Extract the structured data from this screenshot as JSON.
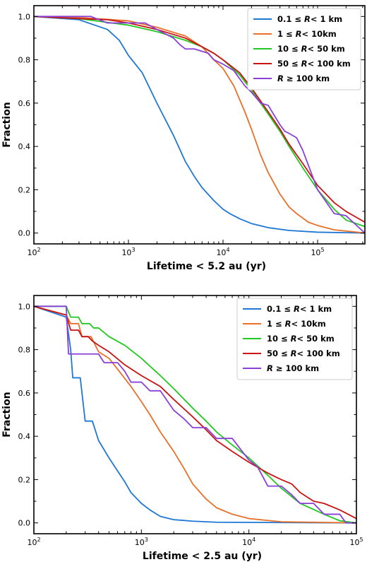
{
  "chart_data": [
    {
      "type": "line",
      "xlabel": "Lifetime < 5.2 au (yr)",
      "ylabel": "Fraction",
      "xscale": "log",
      "xlim": [
        100,
        316228
      ],
      "ylim": [
        -0.05,
        1.05
      ],
      "xticks": [
        {
          "value": 100,
          "base": "10",
          "exp": "2"
        },
        {
          "value": 1000,
          "base": "10",
          "exp": "3"
        },
        {
          "value": 10000,
          "base": "10",
          "exp": "4"
        },
        {
          "value": 100000,
          "base": "10",
          "exp": "5"
        }
      ],
      "yticks": [
        "0.0",
        "0.2",
        "0.4",
        "0.6",
        "0.8",
        "1.0"
      ],
      "legend_position": "top-right",
      "series": [
        {
          "name_parts": [
            "0.1 ",
            "≤",
            "R",
            "< 1 km"
          ],
          "color": "#1f77d4",
          "points": [
            [
              100,
              1.0
            ],
            [
              300,
              0.985
            ],
            [
              600,
              0.94
            ],
            [
              800,
              0.89
            ],
            [
              1000,
              0.82
            ],
            [
              1400,
              0.74
            ],
            [
              2000,
              0.6
            ],
            [
              3000,
              0.45
            ],
            [
              4000,
              0.33
            ],
            [
              5000,
              0.26
            ],
            [
              6000,
              0.21
            ],
            [
              8000,
              0.15
            ],
            [
              10000,
              0.11
            ],
            [
              12000,
              0.088
            ],
            [
              15000,
              0.066
            ],
            [
              20000,
              0.044
            ],
            [
              30000,
              0.025
            ],
            [
              50000,
              0.012
            ],
            [
              100000,
              0.004
            ],
            [
              316228,
              0.0
            ]
          ]
        },
        {
          "name_parts": [
            "1",
            "≤",
            "R",
            "< 10km"
          ],
          "color": "#e8702a",
          "points": [
            [
              100,
              1.0
            ],
            [
              300,
              0.995
            ],
            [
              1000,
              0.98
            ],
            [
              2000,
              0.95
            ],
            [
              4000,
              0.91
            ],
            [
              6000,
              0.86
            ],
            [
              8000,
              0.8
            ],
            [
              10000,
              0.76
            ],
            [
              13000,
              0.68
            ],
            [
              17000,
              0.56
            ],
            [
              20000,
              0.48
            ],
            [
              25000,
              0.36
            ],
            [
              30000,
              0.28
            ],
            [
              40000,
              0.18
            ],
            [
              50000,
              0.12
            ],
            [
              60000,
              0.09
            ],
            [
              80000,
              0.05
            ],
            [
              100000,
              0.035
            ],
            [
              150000,
              0.015
            ],
            [
              316228,
              0.0
            ]
          ]
        },
        {
          "name_parts": [
            "10",
            "≤",
            "R",
            "< 50 km"
          ],
          "color": "#22c822",
          "points": [
            [
              100,
              1.0
            ],
            [
              300,
              0.99
            ],
            [
              1000,
              0.96
            ],
            [
              2000,
              0.93
            ],
            [
              4000,
              0.89
            ],
            [
              6000,
              0.86
            ],
            [
              8000,
              0.83
            ],
            [
              10000,
              0.8
            ],
            [
              15000,
              0.73
            ],
            [
              20000,
              0.66
            ],
            [
              30000,
              0.55
            ],
            [
              40000,
              0.47
            ],
            [
              50000,
              0.4
            ],
            [
              70000,
              0.3
            ],
            [
              100000,
              0.2
            ],
            [
              150000,
              0.11
            ],
            [
              200000,
              0.06
            ],
            [
              316228,
              0.03
            ]
          ]
        },
        {
          "name_parts": [
            "50",
            "≤",
            "R",
            "< 100 km"
          ],
          "color": "#c81414",
          "points": [
            [
              100,
              1.0
            ],
            [
              300,
              0.99
            ],
            [
              600,
              0.985
            ],
            [
              1000,
              0.97
            ],
            [
              2000,
              0.94
            ],
            [
              4000,
              0.9
            ],
            [
              6000,
              0.86
            ],
            [
              8000,
              0.83
            ],
            [
              10000,
              0.8
            ],
            [
              15000,
              0.74
            ],
            [
              20000,
              0.67
            ],
            [
              30000,
              0.56
            ],
            [
              40000,
              0.48
            ],
            [
              50000,
              0.41
            ],
            [
              70000,
              0.32
            ],
            [
              100000,
              0.22
            ],
            [
              150000,
              0.14
            ],
            [
              200000,
              0.1
            ],
            [
              316228,
              0.05
            ]
          ]
        },
        {
          "name_parts": [
            "",
            "",
            "R",
            " ≥ 100 km"
          ],
          "color": "#8a3fd8",
          "points": [
            [
              100,
              1.0
            ],
            [
              400,
              1.0
            ],
            [
              600,
              0.97
            ],
            [
              800,
              0.97
            ],
            [
              1000,
              0.97
            ],
            [
              1500,
              0.97
            ],
            [
              2000,
              0.94
            ],
            [
              3000,
              0.9
            ],
            [
              3500,
              0.87
            ],
            [
              4000,
              0.85
            ],
            [
              5000,
              0.85
            ],
            [
              7000,
              0.83
            ],
            [
              8000,
              0.8
            ],
            [
              10000,
              0.78
            ],
            [
              13000,
              0.75
            ],
            [
              17000,
              0.68
            ],
            [
              20000,
              0.65
            ],
            [
              25000,
              0.6
            ],
            [
              30000,
              0.59
            ],
            [
              40000,
              0.5
            ],
            [
              45000,
              0.47
            ],
            [
              50000,
              0.46
            ],
            [
              60000,
              0.44
            ],
            [
              70000,
              0.38
            ],
            [
              100000,
              0.2
            ],
            [
              150000,
              0.09
            ],
            [
              200000,
              0.08
            ],
            [
              316228,
              0.0
            ]
          ]
        }
      ]
    },
    {
      "type": "line",
      "xlabel": "Lifetime < 2.5 au (yr)",
      "ylabel": "Fraction",
      "xscale": "log",
      "xlim": [
        100,
        100000
      ],
      "ylim": [
        -0.05,
        1.05
      ],
      "xticks": [
        {
          "value": 100,
          "base": "10",
          "exp": "2"
        },
        {
          "value": 1000,
          "base": "10",
          "exp": "3"
        },
        {
          "value": 10000,
          "base": "10",
          "exp": "4"
        },
        {
          "value": 100000,
          "base": "10",
          "exp": "5"
        }
      ],
      "yticks": [
        "0.0",
        "0.2",
        "0.4",
        "0.6",
        "0.8",
        "1.0"
      ],
      "legend_position": "top-right",
      "series": [
        {
          "name_parts": [
            "0.1 ",
            "≤",
            "R",
            "< 1 km"
          ],
          "color": "#1f77d4",
          "points": [
            [
              100,
              1.0
            ],
            [
              200,
              0.95
            ],
            [
              220,
              0.8
            ],
            [
              230,
              0.67
            ],
            [
              270,
              0.67
            ],
            [
              300,
              0.47
            ],
            [
              350,
              0.47
            ],
            [
              400,
              0.38
            ],
            [
              500,
              0.3
            ],
            [
              600,
              0.24
            ],
            [
              700,
              0.19
            ],
            [
              800,
              0.14
            ],
            [
              1000,
              0.09
            ],
            [
              1200,
              0.06
            ],
            [
              1500,
              0.03
            ],
            [
              2000,
              0.015
            ],
            [
              3000,
              0.008
            ],
            [
              5000,
              0.003
            ],
            [
              100000,
              0.0
            ]
          ]
        },
        {
          "name_parts": [
            "1",
            "≤",
            "R",
            "< 10km"
          ],
          "color": "#e8702a",
          "points": [
            [
              100,
              1.0
            ],
            [
              200,
              0.96
            ],
            [
              220,
              0.92
            ],
            [
              260,
              0.92
            ],
            [
              280,
              0.86
            ],
            [
              340,
              0.86
            ],
            [
              400,
              0.79
            ],
            [
              500,
              0.76
            ],
            [
              600,
              0.71
            ],
            [
              800,
              0.63
            ],
            [
              1000,
              0.56
            ],
            [
              1200,
              0.5
            ],
            [
              1500,
              0.42
            ],
            [
              2000,
              0.33
            ],
            [
              2500,
              0.25
            ],
            [
              3000,
              0.18
            ],
            [
              4000,
              0.11
            ],
            [
              5000,
              0.07
            ],
            [
              7000,
              0.04
            ],
            [
              10000,
              0.02
            ],
            [
              20000,
              0.005
            ],
            [
              100000,
              0.0
            ]
          ]
        },
        {
          "name_parts": [
            "10",
            "≤",
            "R",
            "< 50 km"
          ],
          "color": "#22c822",
          "points": [
            [
              100,
              1.0
            ],
            [
              200,
              1.0
            ],
            [
              220,
              0.95
            ],
            [
              260,
              0.95
            ],
            [
              280,
              0.92
            ],
            [
              330,
              0.92
            ],
            [
              360,
              0.9
            ],
            [
              400,
              0.9
            ],
            [
              500,
              0.86
            ],
            [
              700,
              0.82
            ],
            [
              1000,
              0.76
            ],
            [
              1500,
              0.68
            ],
            [
              2000,
              0.62
            ],
            [
              3000,
              0.53
            ],
            [
              4000,
              0.47
            ],
            [
              5000,
              0.42
            ],
            [
              7000,
              0.36
            ],
            [
              10000,
              0.3
            ],
            [
              15000,
              0.22
            ],
            [
              20000,
              0.16
            ],
            [
              30000,
              0.09
            ],
            [
              50000,
              0.04
            ],
            [
              70000,
              0.01
            ],
            [
              100000,
              0.0
            ]
          ]
        },
        {
          "name_parts": [
            "50",
            "≤",
            "R",
            "< 100 km"
          ],
          "color": "#c81414",
          "points": [
            [
              100,
              1.0
            ],
            [
              200,
              0.96
            ],
            [
              220,
              0.89
            ],
            [
              260,
              0.89
            ],
            [
              280,
              0.86
            ],
            [
              320,
              0.86
            ],
            [
              350,
              0.84
            ],
            [
              400,
              0.82
            ],
            [
              500,
              0.79
            ],
            [
              700,
              0.73
            ],
            [
              1000,
              0.68
            ],
            [
              1500,
              0.63
            ],
            [
              2000,
              0.57
            ],
            [
              3000,
              0.49
            ],
            [
              4000,
              0.43
            ],
            [
              5000,
              0.38
            ],
            [
              7000,
              0.33
            ],
            [
              10000,
              0.28
            ],
            [
              15000,
              0.23
            ],
            [
              20000,
              0.2
            ],
            [
              25000,
              0.18
            ],
            [
              30000,
              0.14
            ],
            [
              40000,
              0.1
            ],
            [
              50000,
              0.09
            ],
            [
              70000,
              0.06
            ],
            [
              100000,
              0.02
            ]
          ]
        },
        {
          "name_parts": [
            "",
            "",
            "R",
            " ≥ 100 km"
          ],
          "color": "#8a3fd8",
          "points": [
            [
              100,
              1.0
            ],
            [
              200,
              1.0
            ],
            [
              210,
              0.78
            ],
            [
              260,
              0.78
            ],
            [
              300,
              0.78
            ],
            [
              400,
              0.78
            ],
            [
              450,
              0.74
            ],
            [
              600,
              0.74
            ],
            [
              700,
              0.7
            ],
            [
              800,
              0.65
            ],
            [
              1000,
              0.65
            ],
            [
              1200,
              0.61
            ],
            [
              1500,
              0.61
            ],
            [
              2000,
              0.52
            ],
            [
              2500,
              0.48
            ],
            [
              3000,
              0.44
            ],
            [
              4000,
              0.44
            ],
            [
              5000,
              0.39
            ],
            [
              7000,
              0.39
            ],
            [
              10000,
              0.29
            ],
            [
              12000,
              0.26
            ],
            [
              15000,
              0.17
            ],
            [
              20000,
              0.17
            ],
            [
              25000,
              0.13
            ],
            [
              30000,
              0.09
            ],
            [
              40000,
              0.09
            ],
            [
              50000,
              0.04
            ],
            [
              70000,
              0.04
            ],
            [
              80000,
              0.0
            ],
            [
              100000,
              0.0
            ]
          ]
        }
      ]
    }
  ]
}
